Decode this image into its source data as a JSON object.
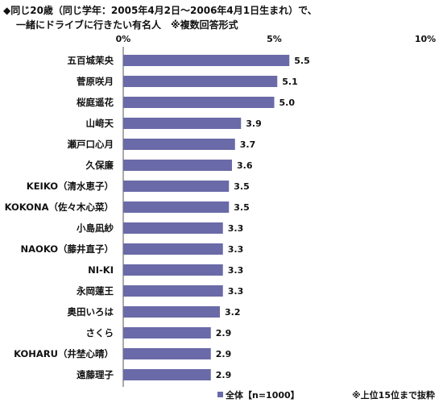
{
  "title_lines": [
    "◆同じ20歳（同じ学年：2005年4月2日～2006年4月1日生まれ）で、",
    "一緒にドライブに行きたい有名人　※複数回答形式"
  ],
  "note": "※上位15位まで抜粋",
  "colors": {
    "bar": "#6a6aa8",
    "axis": "#555555",
    "background": "#ffffff"
  },
  "chart_data": {
    "type": "bar",
    "orientation": "horizontal",
    "xlim": [
      0,
      10
    ],
    "ticks": [
      0,
      5,
      10
    ],
    "tick_labels": [
      "0%",
      "5%",
      "10%"
    ],
    "grid": false,
    "legend_position": "bottom",
    "categories": [
      "五百城茉央",
      "菅原咲月",
      "桜庭遥花",
      "山﨑天",
      "瀬戸口心月",
      "久保廉",
      "KEIKO（清水恵子）",
      "KOKONA（佐々木心菜）",
      "小島凪紗",
      "NAOKO（藤井直子）",
      "NI-KI",
      "永岡蓮王",
      "奥田いろは",
      "さくら",
      "KOHARU（井埜心晴）",
      "遠藤理子"
    ],
    "series": [
      {
        "name": "全体【n=1000】",
        "values": [
          5.5,
          5.1,
          5.0,
          3.9,
          3.7,
          3.6,
          3.5,
          3.5,
          3.3,
          3.3,
          3.3,
          3.3,
          3.2,
          2.9,
          2.9,
          2.9
        ]
      }
    ],
    "value_labels": [
      "5.5",
      "5.1",
      "5.0",
      "3.9",
      "3.7",
      "3.6",
      "3.5",
      "3.5",
      "3.3",
      "3.3",
      "3.3",
      "3.3",
      "3.2",
      "2.9",
      "2.9",
      "2.9"
    ]
  }
}
